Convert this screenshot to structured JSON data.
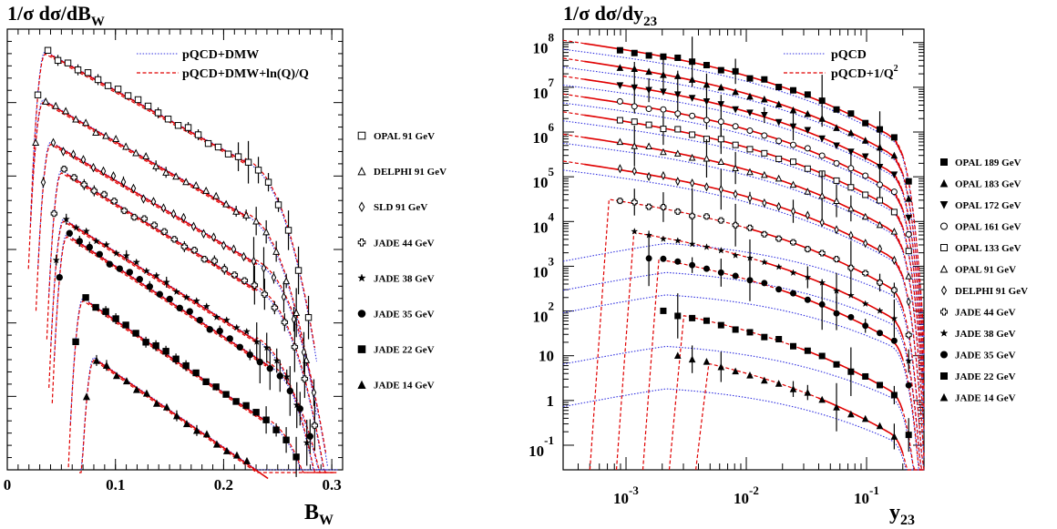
{
  "chart_data": [
    {
      "type": "line",
      "title": "1/σ dσ/dB",
      "title_sub": "W",
      "xlabel": "B",
      "xlabel_sub": "W",
      "ylabel": "",
      "xlim": [
        0,
        0.31
      ],
      "ylim": [
        0,
        1
      ],
      "x_ticklabels": [
        "0",
        "0.1",
        "0.2",
        "0.3"
      ],
      "x_tickvalues": [
        0,
        0.1,
        0.2,
        0.3
      ],
      "legend_position": "top-right",
      "lines_legend": [
        {
          "name": "pQCD+DMW",
          "style": "dotted",
          "color": "#3030e0"
        },
        {
          "name": "pQCD+DMW+ln(Q)/Q",
          "style": "dashed",
          "color": "#e00000"
        }
      ],
      "series": [
        {
          "name": "OPAL 91 GeV",
          "marker": "open-square",
          "peak_x": 0.035,
          "peak_y": 0.95,
          "end_x": 0.28
        },
        {
          "name": "DELPHI 91 GeV",
          "marker": "open-triangle",
          "peak_x": 0.033,
          "peak_y": 0.84,
          "end_x": 0.28
        },
        {
          "name": "SLD 91 GeV",
          "marker": "open-diamond",
          "peak_x": 0.04,
          "peak_y": 0.745,
          "end_x": 0.29
        },
        {
          "name": "JADE 44 GeV",
          "marker": "open-cross",
          "peak_x": 0.05,
          "peak_y": 0.68,
          "end_x": 0.29
        },
        {
          "name": "JADE 38 GeV",
          "marker": "star",
          "peak_x": 0.052,
          "peak_y": 0.57,
          "end_x": 0.29
        },
        {
          "name": "JADE 35 GeV",
          "marker": "filled-circle",
          "peak_x": 0.055,
          "peak_y": 0.535,
          "end_x": 0.3
        },
        {
          "name": "JADE 22 GeV",
          "marker": "filled-square",
          "peak_x": 0.07,
          "peak_y": 0.39,
          "end_x": 0.3
        },
        {
          "name": "JADE 14 GeV",
          "marker": "filled-triangle",
          "peak_x": 0.08,
          "peak_y": 0.255,
          "end_x": 0.3
        }
      ]
    },
    {
      "type": "line",
      "title": "1/σ dσ/dy",
      "title_sub": "23",
      "xlabel": "y",
      "xlabel_sub": "23",
      "ylabel": "",
      "xscale": "log",
      "xlim": [
        0.0003,
        0.3
      ],
      "yscale": "log",
      "x_ticklabels": [
        {
          "base": "10",
          "exp": "-3"
        },
        {
          "base": "10",
          "exp": "-2"
        },
        {
          "base": "10",
          "exp": "-1"
        }
      ],
      "y_ticklabels": [
        {
          "base": "10",
          "exp": "8"
        },
        {
          "base": "10",
          "exp": "7"
        },
        {
          "base": "10",
          "exp": "6"
        },
        {
          "base": "10",
          "exp": "5"
        },
        {
          "base": "10",
          "exp": "4"
        },
        {
          "base": "10",
          "exp": "3"
        },
        {
          "base": "10",
          "exp": "2"
        },
        {
          "base": "10",
          "exp": ""
        },
        {
          "base": "1",
          "exp": ""
        },
        {
          "base": "10",
          "exp": "-1"
        }
      ],
      "legend_position": "top-right",
      "lines_legend": [
        {
          "name": "pQCD",
          "style": "dotted",
          "color": "#3030e0"
        },
        {
          "name": "pQCD+1/Q",
          "sup": "2",
          "style": "dashed",
          "color": "#e00000"
        }
      ],
      "series": [
        {
          "name": "OPAL 189 GeV",
          "marker": "filled-square",
          "start_logy": 8.0
        },
        {
          "name": "OPAL 183 GeV",
          "marker": "filled-triangle",
          "start_logy": 7.6
        },
        {
          "name": "OPAL 172 GeV",
          "marker": "filled-triangle-down",
          "start_logy": 7.2
        },
        {
          "name": "OPAL 161 GeV",
          "marker": "open-circle",
          "start_logy": 6.8
        },
        {
          "name": "OPAL 133 GeV",
          "marker": "open-square",
          "start_logy": 6.4
        },
        {
          "name": "OPAL 91 GeV",
          "marker": "open-triangle",
          "start_logy": 5.9
        },
        {
          "name": "DELPHI 91 GeV",
          "marker": "open-diamond",
          "start_logy": 5.3
        },
        {
          "name": "JADE 44 GeV",
          "marker": "open-cross",
          "start_logy": 4.6
        },
        {
          "name": "JADE 38 GeV",
          "marker": "star",
          "start_logy": 3.95
        },
        {
          "name": "JADE 35 GeV",
          "marker": "filled-circle",
          "start_logy": 3.45
        },
        {
          "name": "JADE 22 GeV",
          "marker": "filled-square",
          "start_logy": 2.3
        },
        {
          "name": "JADE 14 GeV",
          "marker": "filled-triangle",
          "start_logy": 1.35
        }
      ]
    }
  ]
}
